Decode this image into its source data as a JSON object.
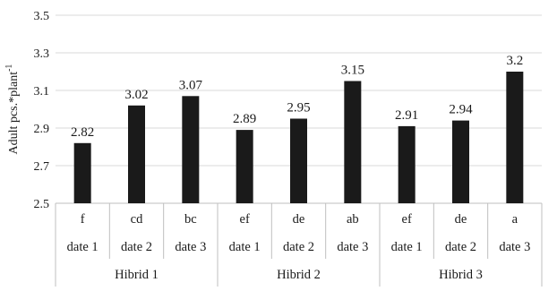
{
  "chart_data": {
    "type": "bar",
    "ylabel": "Adult pcs.*plant",
    "ylabel_superscript": "-1",
    "ylim": [
      2.5,
      3.5
    ],
    "yticks": [
      "2.5",
      "2.7",
      "2.9",
      "3.1",
      "3.3",
      "3.5"
    ],
    "grid": true,
    "groups": [
      {
        "name": "Hibrid 1",
        "bars": [
          {
            "letter": "f",
            "date": "date 1",
            "value": 2.82,
            "label": "2.82"
          },
          {
            "letter": "cd",
            "date": "date 2",
            "value": 3.02,
            "label": "3.02"
          },
          {
            "letter": "bc",
            "date": "date 3",
            "value": 3.07,
            "label": "3.07"
          }
        ]
      },
      {
        "name": "Hibrid 2",
        "bars": [
          {
            "letter": "ef",
            "date": "date 1",
            "value": 2.89,
            "label": "2.89"
          },
          {
            "letter": "de",
            "date": "date 2",
            "value": 2.95,
            "label": "2.95"
          },
          {
            "letter": "ab",
            "date": "date 3",
            "value": 3.15,
            "label": "3.15"
          }
        ]
      },
      {
        "name": "Hibrid 3",
        "bars": [
          {
            "letter": "ef",
            "date": "date 1",
            "value": 2.91,
            "label": "2.91"
          },
          {
            "letter": "de",
            "date": "date 2",
            "value": 2.94,
            "label": "2.94"
          },
          {
            "letter": "a",
            "date": "date 3",
            "value": 3.2,
            "label": "3.2"
          }
        ]
      }
    ],
    "colors": {
      "bar": "#1a1a1a",
      "grid": "#d9d9d9",
      "axis": "#bfbfbf"
    }
  }
}
